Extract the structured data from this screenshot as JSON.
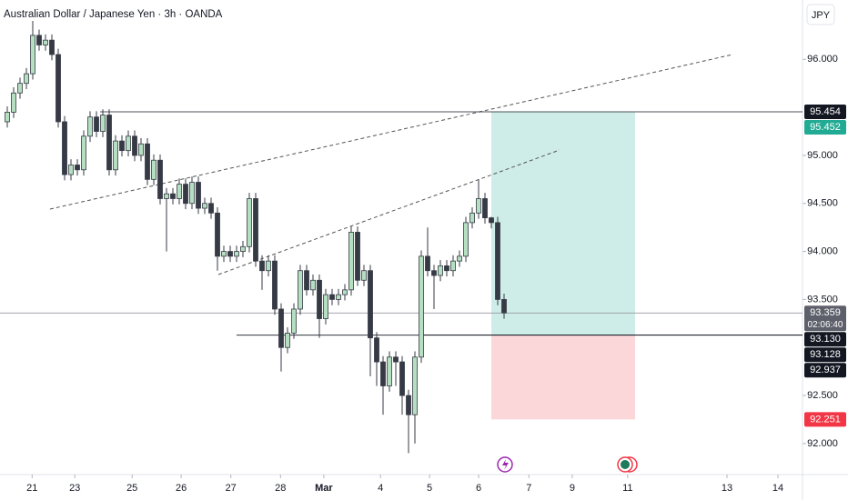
{
  "chart_data": {
    "type": "candlestick",
    "title": "Australian Dollar / Japanese Yen · 3h · OANDA",
    "currency": "JPY",
    "countdown": "02:06:40",
    "bull_color": "#b5dfc1",
    "bear_color": "#363a45",
    "ohlc": [
      [
        95.35,
        95.51,
        95.29,
        95.45
      ],
      [
        95.45,
        95.71,
        95.39,
        95.65
      ],
      [
        95.65,
        95.81,
        95.59,
        95.75
      ],
      [
        95.75,
        95.91,
        95.69,
        95.85
      ],
      [
        95.85,
        96.4,
        95.79,
        96.25
      ],
      [
        96.25,
        96.31,
        96.09,
        96.15
      ],
      [
        96.15,
        96.26,
        96.09,
        96.2
      ],
      [
        96.2,
        96.26,
        95.99,
        96.05
      ],
      [
        96.05,
        96.11,
        95.29,
        95.35
      ],
      [
        95.35,
        95.41,
        94.74,
        94.8
      ],
      [
        94.8,
        94.96,
        94.74,
        94.9
      ],
      [
        94.9,
        94.96,
        94.79,
        94.85
      ],
      [
        94.85,
        95.26,
        94.79,
        95.2
      ],
      [
        95.2,
        95.46,
        95.14,
        95.4
      ],
      [
        95.4,
        95.46,
        95.19,
        95.25
      ],
      [
        95.25,
        95.48,
        95.19,
        95.42
      ],
      [
        95.42,
        95.48,
        94.79,
        94.85
      ],
      [
        94.85,
        95.21,
        94.79,
        95.15
      ],
      [
        95.15,
        95.21,
        94.99,
        95.05
      ],
      [
        95.05,
        95.26,
        94.99,
        95.2
      ],
      [
        95.2,
        95.26,
        94.94,
        95
      ],
      [
        95,
        95.18,
        94.94,
        95.12
      ],
      [
        95.12,
        95.18,
        94.69,
        94.75
      ],
      [
        94.75,
        95.01,
        94.69,
        94.95
      ],
      [
        94.95,
        95.01,
        94.49,
        94.55
      ],
      [
        94.55,
        94.66,
        94,
        94.6
      ],
      [
        94.6,
        94.66,
        94.49,
        94.55
      ],
      [
        94.55,
        94.76,
        94.49,
        94.7
      ],
      [
        94.7,
        94.76,
        94.44,
        94.5
      ],
      [
        94.5,
        94.78,
        94.44,
        94.72
      ],
      [
        94.72,
        94.78,
        94.39,
        94.45
      ],
      [
        94.45,
        94.56,
        94.39,
        94.5
      ],
      [
        94.5,
        94.56,
        94.34,
        94.4
      ],
      [
        94.4,
        94.46,
        93.8,
        93.95
      ],
      [
        93.95,
        94.06,
        93.89,
        94
      ],
      [
        94,
        94.06,
        93.89,
        93.95
      ],
      [
        93.95,
        94.06,
        93.89,
        94
      ],
      [
        94,
        94.11,
        93.94,
        94.05
      ],
      [
        94.05,
        94.61,
        93.99,
        94.55
      ],
      [
        94.55,
        94.61,
        93.84,
        93.9
      ],
      [
        93.9,
        93.96,
        93.6,
        93.8
      ],
      [
        93.8,
        93.96,
        93.74,
        93.9
      ],
      [
        93.9,
        93.96,
        93.34,
        93.4
      ],
      [
        93.4,
        93.46,
        92.75,
        93
      ],
      [
        93,
        93.21,
        92.94,
        93.15
      ],
      [
        93.15,
        93.46,
        93.09,
        93.4
      ],
      [
        93.4,
        93.86,
        93.34,
        93.8
      ],
      [
        93.8,
        93.86,
        93.54,
        93.6
      ],
      [
        93.6,
        93.76,
        93.54,
        93.7
      ],
      [
        93.7,
        93.76,
        93.1,
        93.3
      ],
      [
        93.3,
        93.61,
        93.24,
        93.55
      ],
      [
        93.55,
        93.61,
        93.44,
        93.5
      ],
      [
        93.5,
        93.61,
        93.44,
        93.55
      ],
      [
        93.55,
        93.66,
        93.49,
        93.6
      ],
      [
        93.6,
        94.26,
        93.54,
        94.2
      ],
      [
        94.2,
        94.26,
        93.64,
        93.7
      ],
      [
        93.7,
        93.86,
        93.64,
        93.8
      ],
      [
        93.8,
        93.86,
        92.7,
        93.1
      ],
      [
        93.1,
        93.16,
        92.6,
        92.85
      ],
      [
        92.85,
        92.91,
        92.3,
        92.6
      ],
      [
        92.6,
        92.96,
        92.54,
        92.9
      ],
      [
        92.9,
        92.96,
        92.6,
        92.85
      ],
      [
        92.85,
        92.91,
        92.3,
        92.5
      ],
      [
        92.5,
        92.56,
        91.9,
        92.3
      ],
      [
        92.3,
        92.96,
        92,
        92.9
      ],
      [
        92.9,
        94.01,
        92.84,
        93.95
      ],
      [
        93.95,
        94.25,
        93.74,
        93.8
      ],
      [
        93.8,
        93.86,
        93.4,
        93.75
      ],
      [
        93.75,
        93.91,
        93.69,
        93.85
      ],
      [
        93.85,
        93.91,
        93.74,
        93.8
      ],
      [
        93.8,
        93.96,
        93.74,
        93.9
      ],
      [
        93.9,
        94.01,
        93.84,
        93.95
      ],
      [
        93.95,
        94.36,
        93.89,
        94.3
      ],
      [
        94.3,
        94.46,
        94.24,
        94.4
      ],
      [
        94.4,
        94.75,
        94.34,
        94.55
      ],
      [
        94.55,
        94.61,
        94.29,
        94.35
      ],
      [
        94.35,
        94.36,
        94.24,
        94.3
      ],
      [
        94.3,
        94.36,
        93.44,
        93.5
      ],
      [
        93.5,
        93.56,
        93.3,
        93.36
      ]
    ],
    "xlim": [
      -1.143,
      124.857
    ],
    "xticks": [
      {
        "value": 3.9,
        "label": "21"
      },
      {
        "value": 10.6,
        "label": "23"
      },
      {
        "value": 19.6,
        "label": "25"
      },
      {
        "value": 27.3,
        "label": "26"
      },
      {
        "value": 35.1,
        "label": "27"
      },
      {
        "value": 42.9,
        "label": "28"
      },
      {
        "value": 49.7,
        "label": "Mar"
      },
      {
        "value": 58.6,
        "label": "4"
      },
      {
        "value": 66.3,
        "label": "5"
      },
      {
        "value": 74,
        "label": "6"
      },
      {
        "value": 81.9,
        "label": "7"
      },
      {
        "value": 88.7,
        "label": "9"
      },
      {
        "value": 97.4,
        "label": "11"
      },
      {
        "value": 113,
        "label": "13"
      },
      {
        "value": 121,
        "label": "14"
      }
    ],
    "ylim": [
      91.677,
      96.618
    ],
    "yticks": [
      {
        "value": 92,
        "label": "92.000"
      },
      {
        "value": 92.5,
        "label": "92.500"
      },
      {
        "value": 93.5,
        "label": "93.500"
      },
      {
        "value": 94,
        "label": "94.000"
      },
      {
        "value": 94.5,
        "label": "94.500"
      },
      {
        "value": 95,
        "label": "95.000"
      },
      {
        "value": 96,
        "label": "96.000"
      }
    ],
    "price_labels": [
      {
        "value": 95.454,
        "label": "95.454",
        "color": "#131722"
      },
      {
        "value": 95.452,
        "label": "95.452",
        "color": "#22ab94"
      },
      {
        "value": 93.359,
        "label": "93.359",
        "color": "#5d606b"
      },
      {
        "value": 93.13,
        "label": "93.130",
        "color": "#131722"
      },
      {
        "value": 93.128,
        "label": "93.128",
        "color": "#131722"
      },
      {
        "value": 92.937,
        "label": "92.937",
        "color": "#131722"
      },
      {
        "value": 92.251,
        "label": "92.251",
        "color": "#f23645"
      }
    ]
  }
}
